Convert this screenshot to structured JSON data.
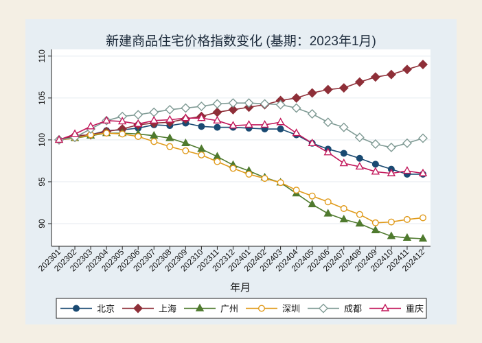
{
  "chart_data": {
    "type": "line",
    "title": "新建商品住宅价格指数变化 (基期：2023年1月)",
    "xlabel": "年月",
    "ylabel": "",
    "ylim": [
      87.3,
      110.8
    ],
    "yticks": [
      90,
      95,
      100,
      105,
      110
    ],
    "grid": true,
    "legend_position": "bottom",
    "categories": [
      "202301",
      "202302",
      "202303",
      "202304",
      "202305",
      "202306",
      "202307",
      "202308",
      "202309",
      "202310",
      "202311",
      "202312",
      "202401",
      "202402",
      "202403",
      "202404",
      "202405",
      "202406",
      "202407",
      "202408",
      "202409",
      "202410",
      "202411",
      "202412"
    ],
    "series": [
      {
        "name": "北京",
        "color": "#1a4a72",
        "marker": "circle-filled",
        "values": [
          100,
          100.3,
          100.6,
          101.1,
          101.2,
          101.4,
          101.8,
          101.7,
          102.0,
          101.6,
          101.5,
          101.5,
          101.4,
          101.3,
          101.3,
          100.6,
          99.6,
          98.9,
          98.4,
          97.8,
          97.1,
          96.5,
          95.9,
          95.9
        ]
      },
      {
        "name": "上海",
        "color": "#8e2f38",
        "marker": "diamond-filled",
        "values": [
          100,
          100.5,
          100.6,
          101.0,
          101.3,
          101.8,
          102.0,
          102.1,
          102.5,
          102.8,
          103.3,
          103.6,
          103.9,
          104.2,
          104.7,
          105.0,
          105.6,
          106.0,
          106.2,
          106.9,
          107.5,
          107.8,
          108.4,
          109.0
        ]
      },
      {
        "name": "广州",
        "color": "#4f7a2e",
        "marker": "triangle-filled",
        "values": [
          100,
          100.2,
          100.5,
          100.8,
          100.8,
          100.7,
          100.5,
          100.2,
          99.6,
          98.9,
          98.0,
          97.0,
          96.3,
          95.5,
          94.9,
          93.6,
          92.3,
          91.2,
          90.5,
          90.0,
          89.2,
          88.5,
          88.3,
          88.2
        ]
      },
      {
        "name": "深圳",
        "color": "#e09a1a",
        "marker": "circle-hollow",
        "values": [
          100,
          100.2,
          100.6,
          100.8,
          100.7,
          100.4,
          99.8,
          99.2,
          98.7,
          98.2,
          97.4,
          96.6,
          95.9,
          95.4,
          94.9,
          94.0,
          93.3,
          92.6,
          91.8,
          91.1,
          90.1,
          90.2,
          90.5,
          90.7
        ]
      },
      {
        "name": "成都",
        "color": "#7f9a94",
        "marker": "diamond-hollow",
        "values": [
          100,
          100.3,
          101.3,
          102.3,
          102.8,
          103.0,
          103.3,
          103.6,
          103.8,
          104.0,
          104.3,
          104.4,
          104.4,
          104.3,
          104.2,
          103.8,
          103.1,
          102.1,
          101.5,
          100.3,
          99.5,
          99.1,
          99.6,
          100.2
        ]
      },
      {
        "name": "重庆",
        "color": "#c2185b",
        "marker": "triangle-hollow",
        "values": [
          100,
          100.7,
          101.6,
          102.3,
          102.2,
          101.9,
          102.3,
          102.4,
          102.6,
          102.6,
          102.3,
          101.7,
          101.8,
          101.8,
          102.1,
          100.8,
          99.6,
          98.5,
          97.2,
          96.8,
          96.2,
          96.0,
          96.3,
          96.0
        ]
      }
    ]
  }
}
